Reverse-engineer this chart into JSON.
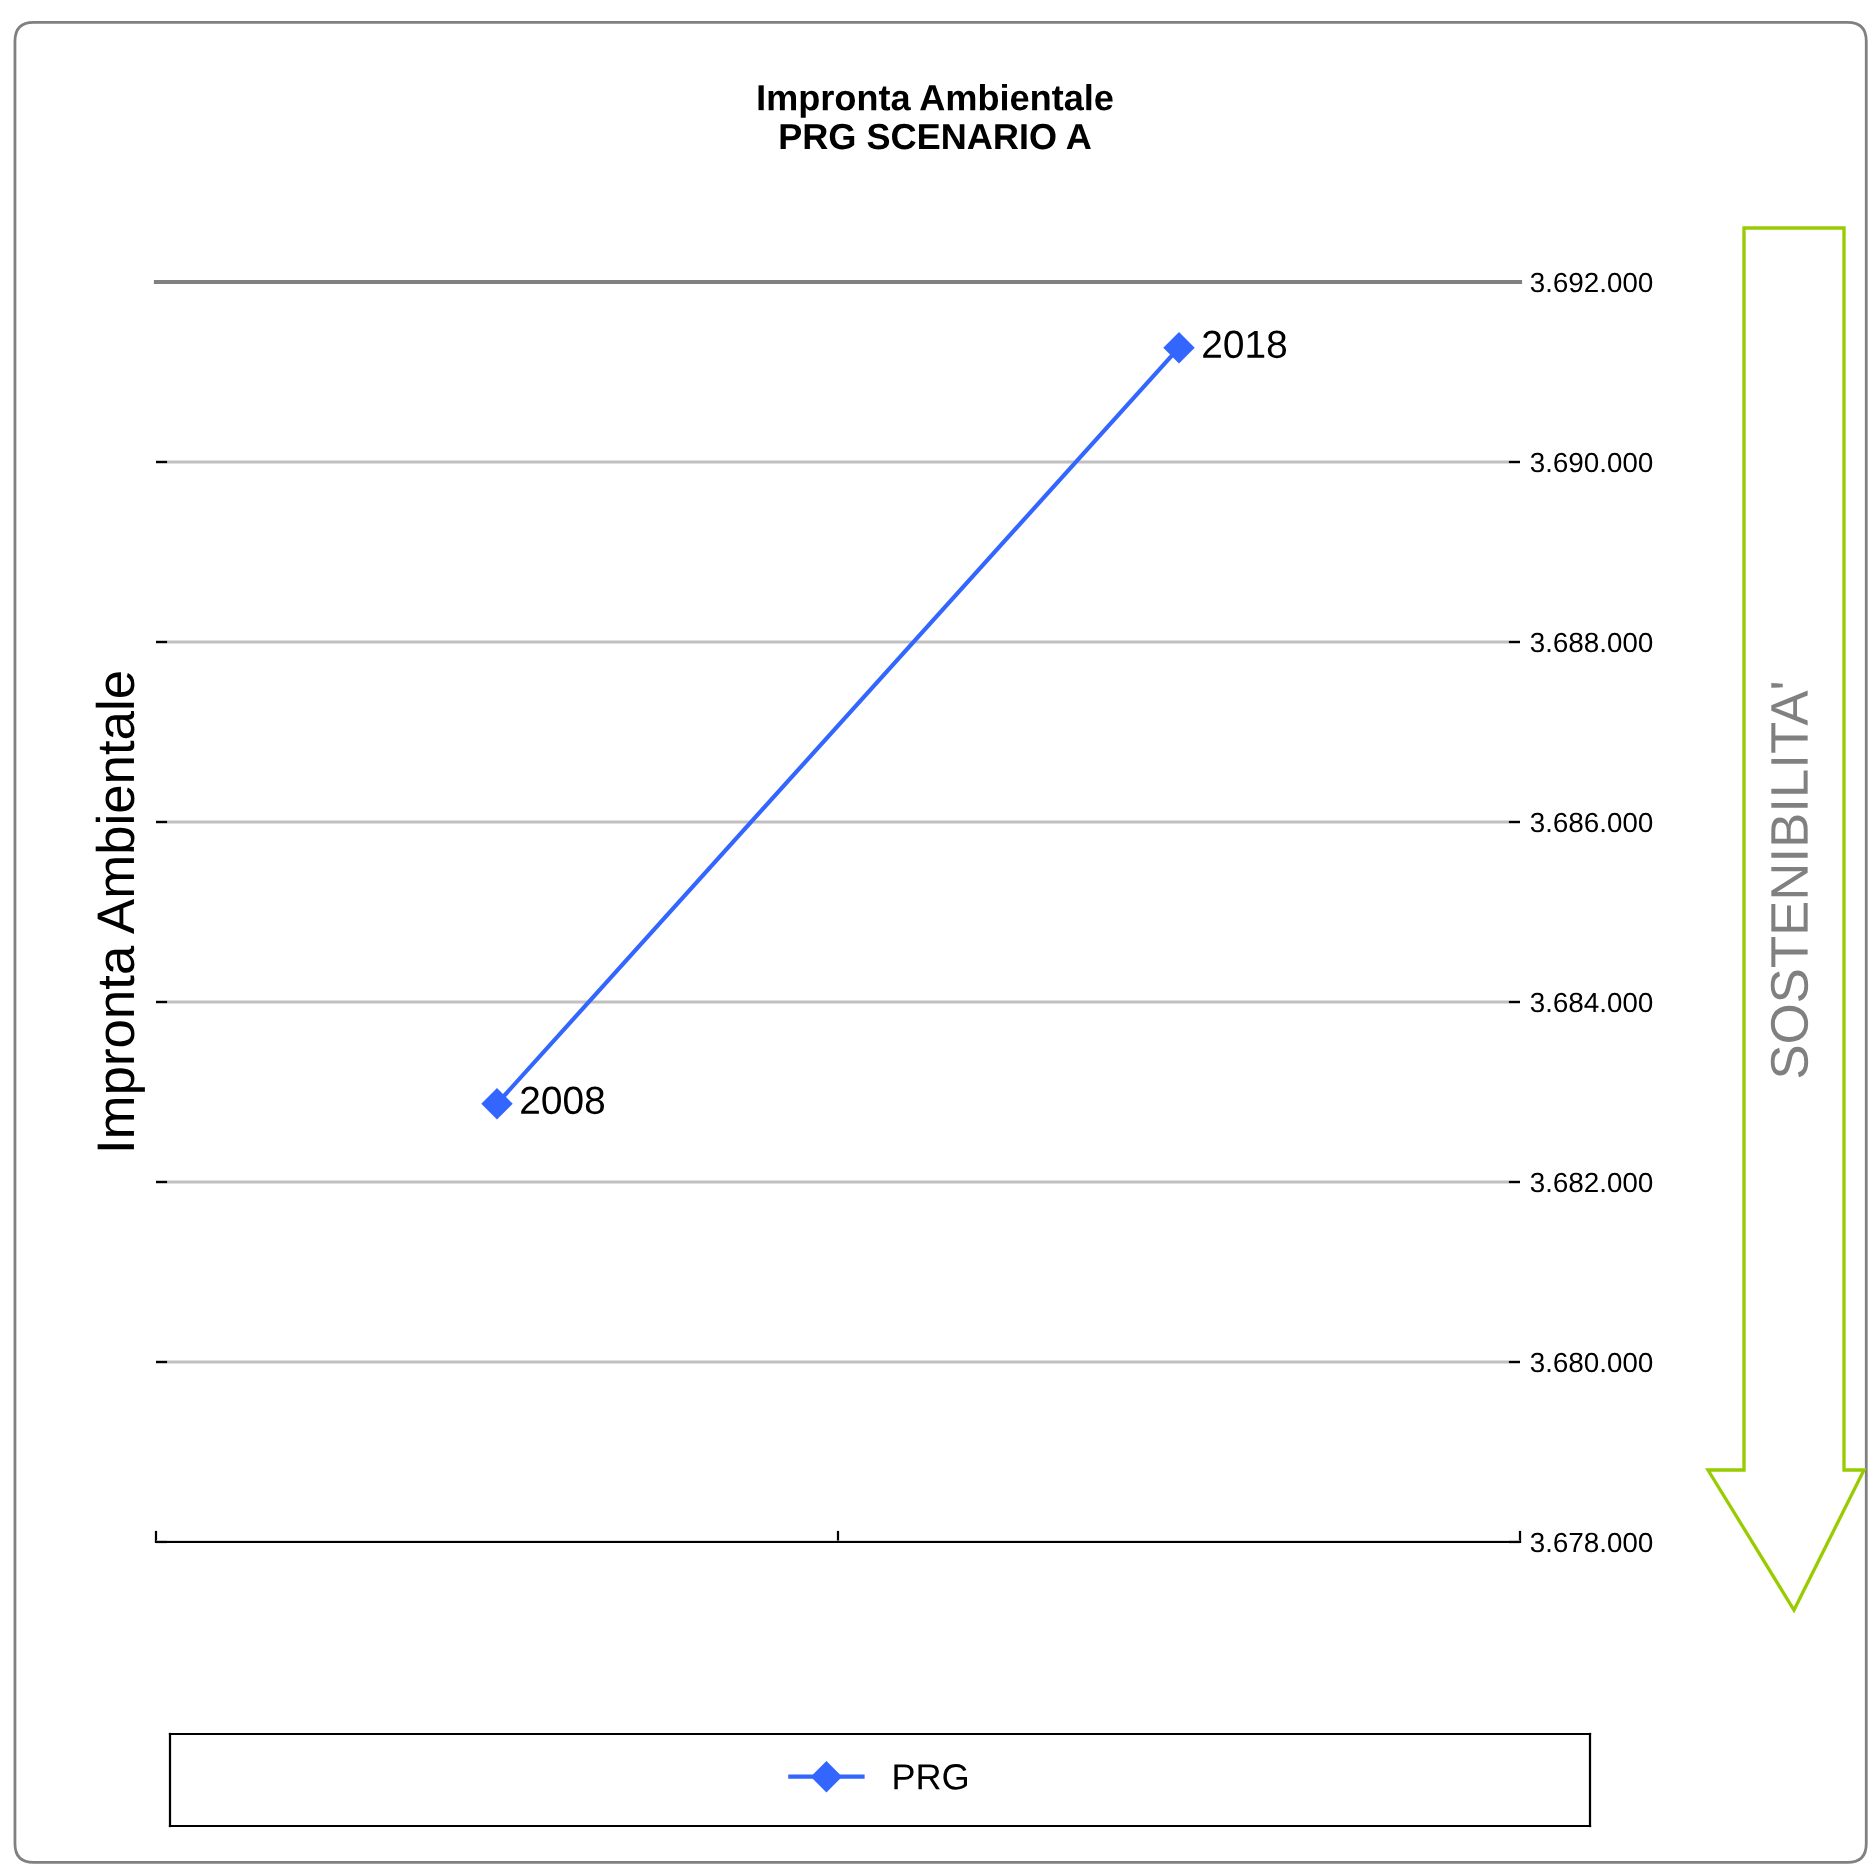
{
  "chart_data": {
    "type": "line",
    "title": "Impronta Ambientale\nPRG SCENARIO A",
    "ylabel": "Impronta Ambientale",
    "categories": [
      null,
      null
    ],
    "series": [
      {
        "name": "PRG",
        "color": "#3366ff",
        "values": [
          3682870,
          3691270
        ]
      }
    ],
    "ylim": [
      3678000,
      3692000
    ],
    "yticks": [
      {
        "value": 3678000,
        "label": "3.678.000"
      },
      {
        "value": 3680000,
        "label": "3.680.000"
      },
      {
        "value": 3682000,
        "label": "3.682.000"
      },
      {
        "value": 3684000,
        "label": "3.684.000"
      },
      {
        "value": 3686000,
        "label": "3.686.000"
      },
      {
        "value": 3688000,
        "label": "3.688.000"
      },
      {
        "value": 3690000,
        "label": "3.690.000"
      },
      {
        "value": 3692000,
        "label": "3.692.000"
      }
    ],
    "tick_labels": "y",
    "grid": "y",
    "legend": "bottom",
    "marker": "diamond",
    "line_style": "solid",
    "annotations": [
      "2008",
      "2018",
      "SOSTENIBILITA'"
    ]
  }
}
